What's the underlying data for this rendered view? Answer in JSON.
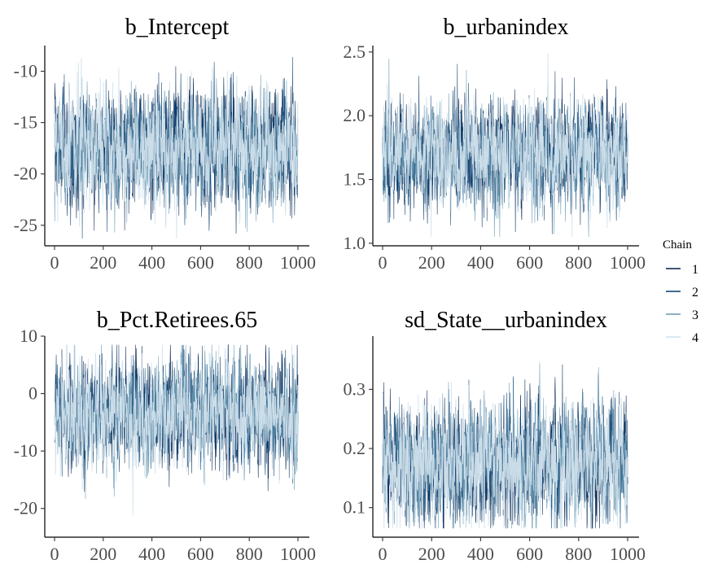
{
  "chart_data": {
    "type": "line",
    "chart_kind": "MCMC trace plot",
    "legend": {
      "title": "Chain",
      "position": "right",
      "entries": [
        {
          "label": "1",
          "color": "#011f4b"
        },
        {
          "label": "2",
          "color": "#03396c"
        },
        {
          "label": "3",
          "color": "#6497b1"
        },
        {
          "label": "4",
          "color": "#d1e1ec"
        }
      ]
    },
    "grid": false,
    "panels": [
      {
        "title": "b_Intercept",
        "xlim": [
          0,
          1000
        ],
        "xticks": [
          0,
          200,
          400,
          600,
          800,
          1000
        ],
        "ylim": [
          -27,
          -7.5
        ],
        "yticks": [
          -25,
          -20,
          -15,
          -10
        ],
        "center": -17.5,
        "spread": 2.8,
        "observed_min": -26.3,
        "observed_max": -8.6
      },
      {
        "title": "b_urbanindex",
        "xlim": [
          0,
          1000
        ],
        "xticks": [
          0,
          200,
          400,
          600,
          800,
          1000
        ],
        "ylim": [
          0.98,
          2.55
        ],
        "yticks": [
          1.0,
          1.5,
          2.0,
          2.5
        ],
        "tick_labels": [
          "1.0",
          "1.5",
          "2.0",
          "2.5"
        ],
        "center": 1.7,
        "spread": 0.2,
        "observed_min": 1.05,
        "observed_max": 2.49
      },
      {
        "title": "b_Pct.Retirees.65",
        "xlim": [
          0,
          1000
        ],
        "xticks": [
          0,
          200,
          400,
          600,
          800,
          1000
        ],
        "ylim": [
          -25,
          10
        ],
        "yticks": [
          -20,
          -10,
          0,
          10
        ],
        "center": -3.5,
        "spread": 4.5,
        "observed_min": -23.5,
        "observed_max": 8.5
      },
      {
        "title": "sd_State__urbanindex",
        "xlim": [
          0,
          1000
        ],
        "xticks": [
          0,
          200,
          400,
          600,
          800,
          1000
        ],
        "ylim": [
          0.05,
          0.39
        ],
        "yticks": [
          0.1,
          0.2,
          0.3
        ],
        "tick_labels": [
          "0.1",
          "0.2",
          "0.3"
        ],
        "center": 0.175,
        "spread": 0.05,
        "observed_min": 0.065,
        "observed_max": 0.375
      }
    ],
    "n_iterations": 1000,
    "n_chains": 4
  }
}
